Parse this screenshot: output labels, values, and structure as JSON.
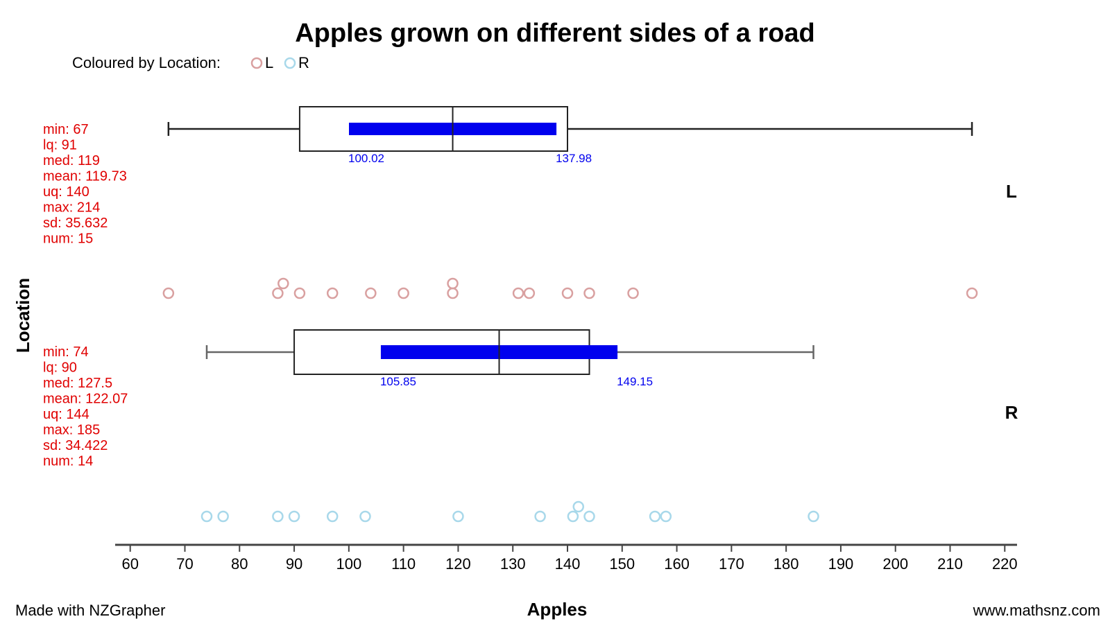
{
  "chart_data": {
    "type": "boxplot-dotplot",
    "title": "Apples grown on different sides of a road",
    "legend": {
      "label": "Coloured by Location:",
      "placement": "top-left",
      "entries": [
        {
          "name": "L",
          "color": "#d9a0a0"
        },
        {
          "name": "R",
          "color": "#a8d8ea"
        }
      ]
    },
    "xlabel": "Apples",
    "ylabel": "Location",
    "xlim": [
      57.5,
      222.5
    ],
    "x_ticks": [
      60,
      70,
      80,
      90,
      100,
      110,
      120,
      130,
      140,
      150,
      160,
      170,
      180,
      190,
      200,
      210,
      220
    ],
    "groups": [
      {
        "name": "L",
        "color": "#d9a0a0",
        "stats": {
          "min": 67,
          "lq": 91,
          "med": 119,
          "mean": 119.73,
          "uq": 140,
          "max": 214,
          "sd": 35.632,
          "num": 15
        },
        "stat_lines": [
          "min: 67",
          "lq: 91",
          "med: 119",
          "mean: 119.73",
          "uq: 140",
          "max: 214",
          "sd: 35.632",
          "num: 15"
        ],
        "ci": {
          "low": 100.02,
          "high": 137.98,
          "low_label": "100.02",
          "high_label": "137.98"
        },
        "points": [
          67,
          87,
          88,
          91,
          97,
          104,
          110,
          119,
          119,
          131,
          133,
          140,
          144,
          152,
          214
        ]
      },
      {
        "name": "R",
        "color": "#a8d8ea",
        "stats": {
          "min": 74,
          "lq": 90,
          "med": 127.5,
          "mean": 122.07,
          "uq": 144,
          "max": 185,
          "sd": 34.422,
          "num": 14
        },
        "stat_lines": [
          "min: 74",
          "lq: 90",
          "med: 127.5",
          "mean: 122.07",
          "uq: 144",
          "max: 185",
          "sd: 34.422",
          "num: 14"
        ],
        "ci": {
          "low": 105.85,
          "high": 149.15,
          "low_label": "105.85",
          "high_label": "149.15"
        },
        "points": [
          74,
          77,
          87,
          90,
          97,
          103,
          120,
          135,
          141,
          142,
          144,
          156,
          158,
          185
        ]
      }
    ],
    "ci_color": "#0000ee"
  },
  "footer": {
    "left": "Made with NZGrapher",
    "right": "www.mathsnz.com"
  }
}
